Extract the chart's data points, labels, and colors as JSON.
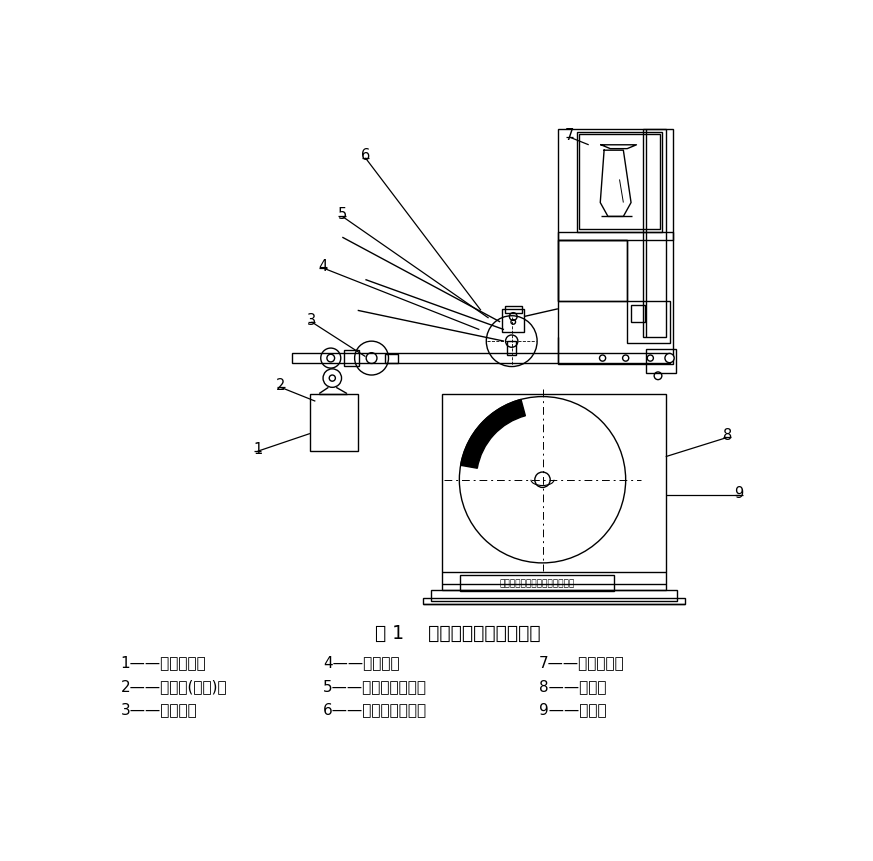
{
  "title": "图 1    加速磨光机结构示意图",
  "legend_items": [
    [
      "1——调荷总成；",
      "4——橡胶轮；",
      "7——供水装置；"
    ],
    [
      "2——调整臂(配重)；",
      "5——细砂输砂装置；",
      "8——机体；"
    ],
    [
      "3——道路轮；",
      "6——粗砂输砂装置；",
      "9——试件。"
    ]
  ],
  "company_text": "江苏省沭阳县市政仪器有限公司",
  "background": "#ffffff",
  "line_color": "#000000"
}
